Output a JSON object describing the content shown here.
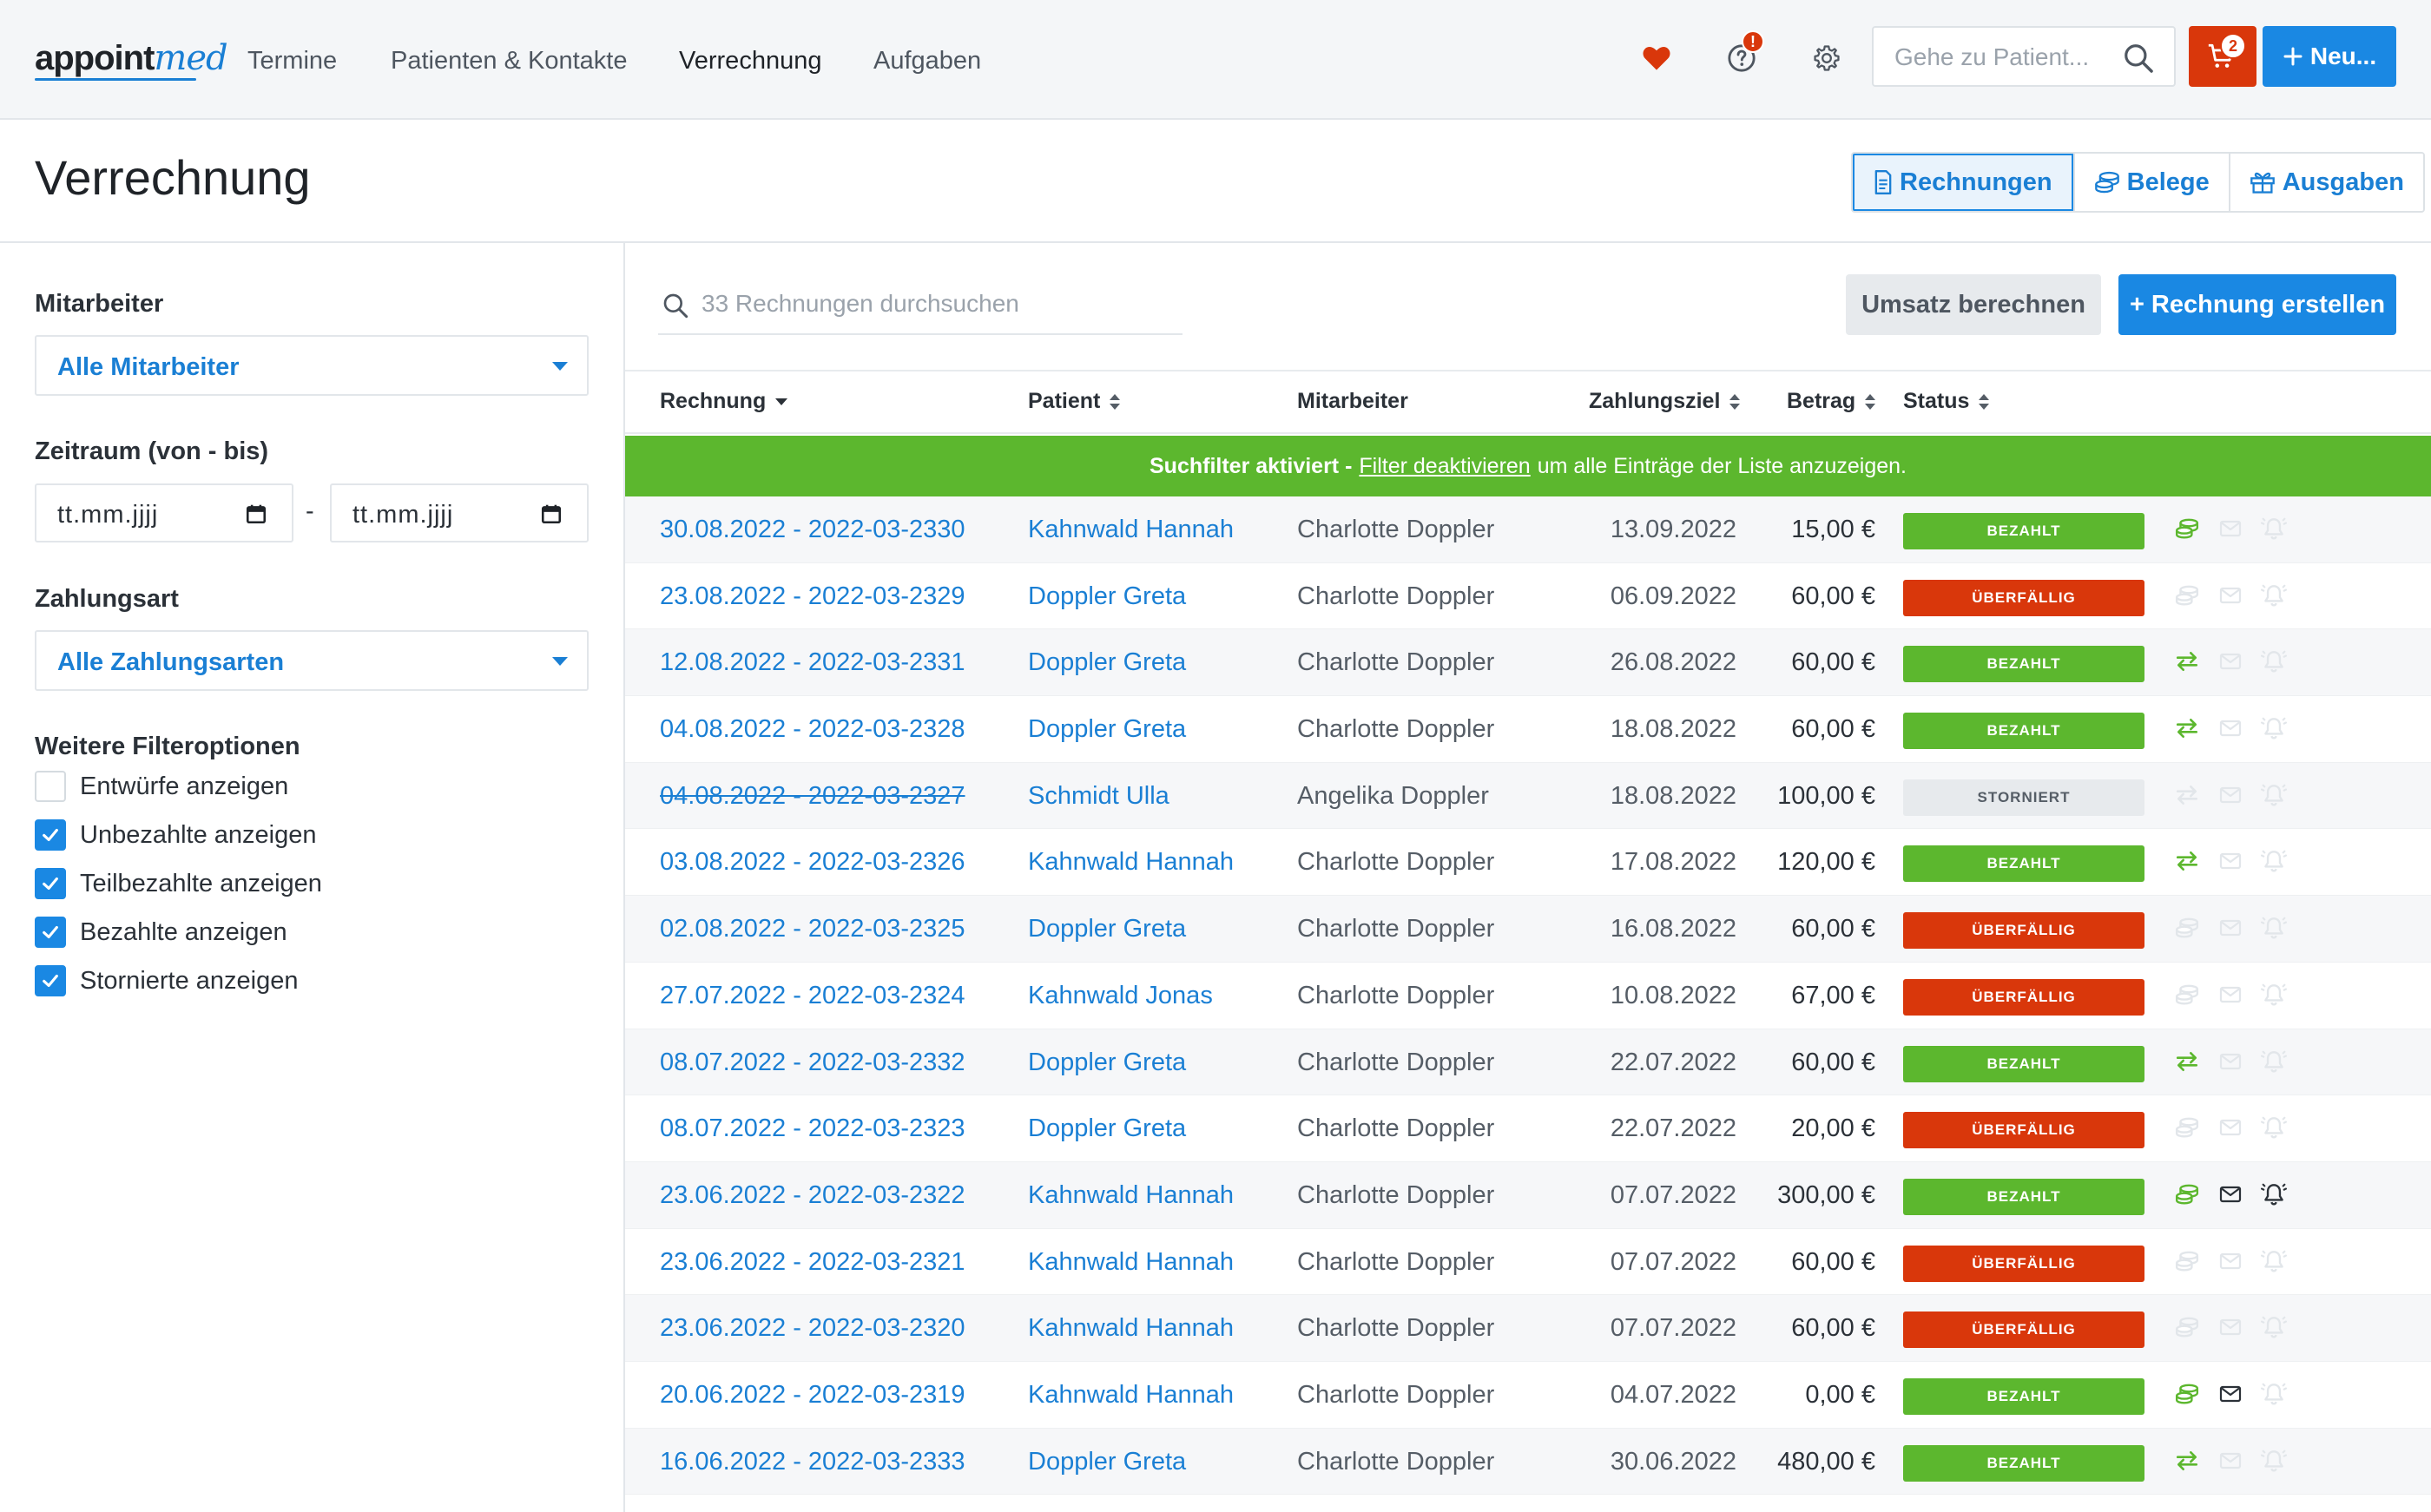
{
  "nav": {
    "logo_main": "appoint",
    "logo_accent": "med",
    "items": [
      "Termine",
      "Patienten & Kontakte",
      "Verrechnung",
      "Aufgaben"
    ],
    "search_placeholder": "Gehe zu Patient...",
    "help_badge": "!",
    "cart_badge": "2",
    "new_label": "Neu..."
  },
  "header": {
    "title": "Verrechnung",
    "tabs": [
      "Rechnungen",
      "Belege",
      "Ausgaben"
    ]
  },
  "sidebar": {
    "employee_label": "Mitarbeiter",
    "employee_value": "Alle Mitarbeiter",
    "period_label": "Zeitraum (von - bis)",
    "date_from": "tt.mm.jjjj",
    "date_separator": "-",
    "date_to": "tt.mm.jjjj",
    "payment_label": "Zahlungsart",
    "payment_value": "Alle Zahlungsarten",
    "more_label": "Weitere Filteroptionen",
    "checkboxes": [
      {
        "label": "Entwürfe anzeigen",
        "checked": false
      },
      {
        "label": "Unbezahlte anzeigen",
        "checked": true
      },
      {
        "label": "Teilbezahlte anzeigen",
        "checked": true
      },
      {
        "label": "Bezahlte anzeigen",
        "checked": true
      },
      {
        "label": "Stornierte anzeigen",
        "checked": true
      }
    ]
  },
  "main": {
    "search_placeholder": "33 Rechnungen durchsuchen",
    "revenue_button": "Umsatz berechnen",
    "create_button": "+ Rechnung erstellen",
    "columns": {
      "invoice": "Rechnung",
      "patient": "Patient",
      "employee": "Mitarbeiter",
      "due": "Zahlungsziel",
      "amount": "Betrag",
      "status": "Status"
    },
    "banner": {
      "pre": "Suchfilter aktiviert -",
      "link": "Filter deaktivieren",
      "post": "um alle Einträge der Liste anzuzeigen."
    },
    "rows": [
      {
        "invoice": "30.08.2022 - 2022-03-2330",
        "patient": "Kahnwald Hannah",
        "employee": "Charlotte Doppler",
        "due": "13.09.2022",
        "amount": "15,00 €",
        "status": "BEZAHLT",
        "kind": "paid",
        "a1": "cash",
        "a1on": true,
        "a2on": false,
        "a3on": false
      },
      {
        "invoice": "23.08.2022 - 2022-03-2329",
        "patient": "Doppler Greta",
        "employee": "Charlotte Doppler",
        "due": "06.09.2022",
        "amount": "60,00 €",
        "status": "ÜBERFÄLLIG",
        "kind": "over",
        "a1": "cash",
        "a1on": false,
        "a2on": false,
        "a3on": false
      },
      {
        "invoice": "12.08.2022 - 2022-03-2331",
        "patient": "Doppler Greta",
        "employee": "Charlotte Doppler",
        "due": "26.08.2022",
        "amount": "60,00 €",
        "status": "BEZAHLT",
        "kind": "paid",
        "a1": "transfer",
        "a1on": true,
        "a2on": false,
        "a3on": false
      },
      {
        "invoice": "04.08.2022 - 2022-03-2328",
        "patient": "Doppler Greta",
        "employee": "Charlotte Doppler",
        "due": "18.08.2022",
        "amount": "60,00 €",
        "status": "BEZAHLT",
        "kind": "paid",
        "a1": "transfer",
        "a1on": true,
        "a2on": false,
        "a3on": false
      },
      {
        "invoice": "04.08.2022 - 2022-03-2327",
        "patient": "Schmidt Ulla",
        "employee": "Angelika Doppler",
        "due": "18.08.2022",
        "amount": "100,00 €",
        "status": "STORNIERT",
        "kind": "canc",
        "a1": "transfer",
        "a1on": false,
        "a2on": false,
        "a3on": false
      },
      {
        "invoice": "03.08.2022 - 2022-03-2326",
        "patient": "Kahnwald Hannah",
        "employee": "Charlotte Doppler",
        "due": "17.08.2022",
        "amount": "120,00 €",
        "status": "BEZAHLT",
        "kind": "paid",
        "a1": "transfer",
        "a1on": true,
        "a2on": false,
        "a3on": false
      },
      {
        "invoice": "02.08.2022 - 2022-03-2325",
        "patient": "Doppler Greta",
        "employee": "Charlotte Doppler",
        "due": "16.08.2022",
        "amount": "60,00 €",
        "status": "ÜBERFÄLLIG",
        "kind": "over",
        "a1": "cash",
        "a1on": false,
        "a2on": false,
        "a3on": false
      },
      {
        "invoice": "27.07.2022 - 2022-03-2324",
        "patient": "Kahnwald Jonas",
        "employee": "Charlotte Doppler",
        "due": "10.08.2022",
        "amount": "67,00 €",
        "status": "ÜBERFÄLLIG",
        "kind": "over",
        "a1": "cash",
        "a1on": false,
        "a2on": false,
        "a3on": false
      },
      {
        "invoice": "08.07.2022 - 2022-03-2332",
        "patient": "Doppler Greta",
        "employee": "Charlotte Doppler",
        "due": "22.07.2022",
        "amount": "60,00 €",
        "status": "BEZAHLT",
        "kind": "paid",
        "a1": "transfer",
        "a1on": true,
        "a2on": false,
        "a3on": false
      },
      {
        "invoice": "08.07.2022 - 2022-03-2323",
        "patient": "Doppler Greta",
        "employee": "Charlotte Doppler",
        "due": "22.07.2022",
        "amount": "20,00 €",
        "status": "ÜBERFÄLLIG",
        "kind": "over",
        "a1": "cash",
        "a1on": false,
        "a2on": false,
        "a3on": false
      },
      {
        "invoice": "23.06.2022 - 2022-03-2322",
        "patient": "Kahnwald Hannah",
        "employee": "Charlotte Doppler",
        "due": "07.07.2022",
        "amount": "300,00 €",
        "status": "BEZAHLT",
        "kind": "paid",
        "a1": "cash",
        "a1on": true,
        "a2on": true,
        "a3on": true
      },
      {
        "invoice": "23.06.2022 - 2022-03-2321",
        "patient": "Kahnwald Hannah",
        "employee": "Charlotte Doppler",
        "due": "07.07.2022",
        "amount": "60,00 €",
        "status": "ÜBERFÄLLIG",
        "kind": "over",
        "a1": "cash",
        "a1on": false,
        "a2on": false,
        "a3on": false
      },
      {
        "invoice": "23.06.2022 - 2022-03-2320",
        "patient": "Kahnwald Hannah",
        "employee": "Charlotte Doppler",
        "due": "07.07.2022",
        "amount": "60,00 €",
        "status": "ÜBERFÄLLIG",
        "kind": "over",
        "a1": "cash",
        "a1on": false,
        "a2on": false,
        "a3on": false
      },
      {
        "invoice": "20.06.2022 - 2022-03-2319",
        "patient": "Kahnwald Hannah",
        "employee": "Charlotte Doppler",
        "due": "04.07.2022",
        "amount": "0,00 €",
        "status": "BEZAHLT",
        "kind": "paid",
        "a1": "cash",
        "a1on": true,
        "a2on": true,
        "a3on": false
      },
      {
        "invoice": "16.06.2022 - 2022-03-2333",
        "patient": "Doppler Greta",
        "employee": "Charlotte Doppler",
        "due": "30.06.2022",
        "amount": "480,00 €",
        "status": "BEZAHLT",
        "kind": "paid",
        "a1": "transfer",
        "a1on": true,
        "a2on": false,
        "a3on": false
      }
    ]
  },
  "colors": {
    "accent": "#1a88e3",
    "link": "#1a7fd4",
    "paid": "#5cb72e",
    "overdue": "#d9370b",
    "cancelled": "#e7eaed"
  }
}
